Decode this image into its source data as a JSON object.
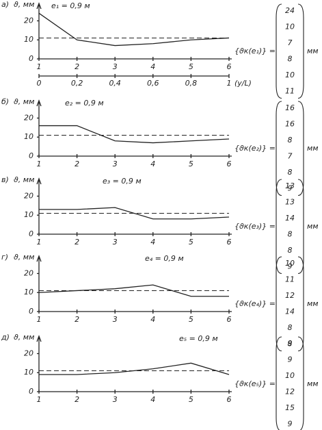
{
  "chart_data": [
    {
      "type": "line",
      "panel": "а)",
      "ylabel": "ϑ, мм",
      "annotation": "e₁ = 0,9 м",
      "x": [
        1,
        2,
        3,
        4,
        5,
        6
      ],
      "xlim": [
        1,
        6
      ],
      "xticks": [
        1,
        2,
        3,
        4,
        5,
        6
      ],
      "x2lim": [
        0,
        1
      ],
      "x2ticks": [
        0,
        {
          "value": 0.2,
          "label": "0,2"
        },
        {
          "value": 0.4,
          "label": "0,4"
        },
        {
          "value": 0.6,
          "label": "0,6"
        },
        {
          "value": 0.8,
          "label": "0,8"
        },
        1
      ],
      "x2label": "(y/L)",
      "ylim": [
        0,
        27
      ],
      "yticks": [
        0,
        10,
        20
      ],
      "reference_line": 11,
      "series": [
        {
          "color": "#222222",
          "values": [
            24,
            10,
            7,
            8,
            10,
            11
          ]
        }
      ],
      "vector_label": "{ϑк(e₁)} =",
      "vector_unit": "мм"
    },
    {
      "type": "line",
      "panel": "б)",
      "ylabel": "ϑ, мм",
      "annotation": "e₂ = 0,9 м",
      "x": [
        1,
        2,
        3,
        4,
        5,
        6
      ],
      "xlim": [
        1,
        6
      ],
      "xticks": [
        1,
        2,
        3,
        4,
        5,
        6
      ],
      "ylim": [
        0,
        27
      ],
      "yticks": [
        0,
        10,
        20
      ],
      "reference_line": 11,
      "series": [
        {
          "color": "#222222",
          "values": [
            16,
            16,
            8,
            7,
            8,
            9
          ]
        }
      ],
      "vector_label": "{ϑк(e₂)} =",
      "vector_unit": "мм"
    },
    {
      "type": "line",
      "panel": "в)",
      "ylabel": "ϑ, мм",
      "annotation": "e₃ = 0,9 м",
      "x": [
        1,
        2,
        3,
        4,
        5,
        6
      ],
      "xlim": [
        1,
        6
      ],
      "xticks": [
        1,
        2,
        3,
        4,
        5,
        6
      ],
      "ylim": [
        0,
        27
      ],
      "yticks": [
        0,
        10,
        20
      ],
      "reference_line": 11,
      "series": [
        {
          "color": "#222222",
          "values": [
            13,
            13,
            14,
            8,
            8,
            9
          ]
        }
      ],
      "vector_label": "{ϑк(e₃)} =",
      "vector_unit": "мм"
    },
    {
      "type": "line",
      "panel": "г)",
      "ylabel": "ϑ, мм",
      "annotation": "e₄ = 0,9 м",
      "x": [
        1,
        2,
        3,
        4,
        5,
        6
      ],
      "xlim": [
        1,
        6
      ],
      "xticks": [
        1,
        2,
        3,
        4,
        5,
        6
      ],
      "ylim": [
        0,
        27
      ],
      "yticks": [
        0,
        10,
        20
      ],
      "reference_line": 11,
      "series": [
        {
          "color": "#222222",
          "values": [
            10,
            11,
            12,
            14,
            8,
            8
          ]
        }
      ],
      "vector_label": "{ϑк(e₄)} =",
      "vector_unit": "мм"
    },
    {
      "type": "line",
      "panel": "д)",
      "ylabel": "ϑ, мм",
      "annotation": "e₅ = 0,9 м",
      "x": [
        1,
        2,
        3,
        4,
        5,
        6
      ],
      "xlim": [
        1,
        6
      ],
      "xticks": [
        1,
        2,
        3,
        4,
        5,
        6
      ],
      "ylim": [
        0,
        27
      ],
      "yticks": [
        0,
        10,
        20
      ],
      "reference_line": 11,
      "series": [
        {
          "color": "#222222",
          "values": [
            9,
            9,
            10,
            12,
            15,
            9
          ]
        }
      ],
      "vector_label": "{ϑк(e₅)} =",
      "vector_unit": "мм"
    }
  ]
}
